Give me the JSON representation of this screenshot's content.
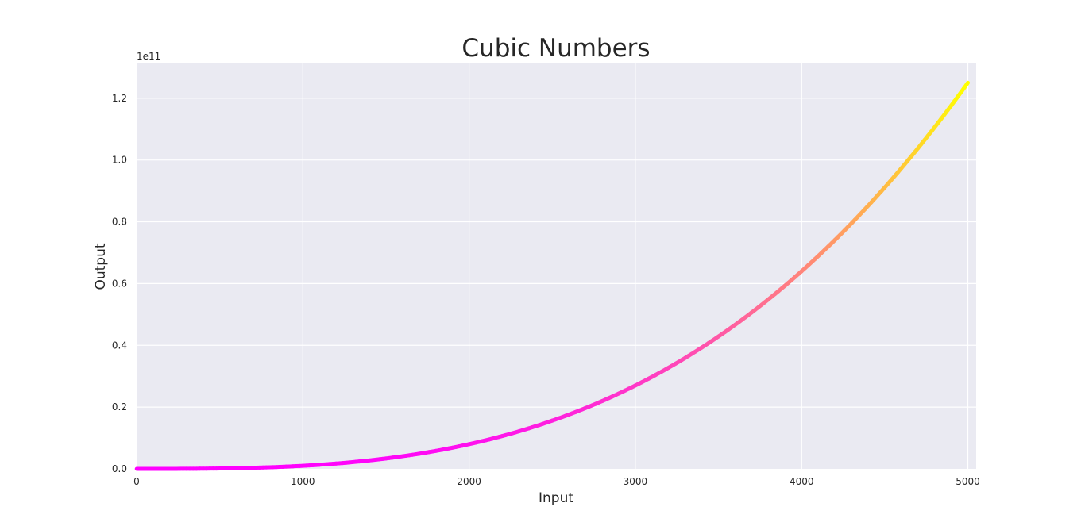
{
  "chart_data": {
    "type": "scatter",
    "title": "Cubic Numbers",
    "xlabel": "Input",
    "ylabel": "Output",
    "y_offset_label": "1e11",
    "xlim": [
      0,
      5050
    ],
    "ylim": [
      0,
      1.3125
    ],
    "x_ticks": [
      0,
      1000,
      2000,
      3000,
      4000,
      5000
    ],
    "x_tick_labels": [
      "0",
      "1000",
      "2000",
      "3000",
      "4000",
      "5000"
    ],
    "y_ticks": [
      0.0,
      0.2,
      0.4,
      0.6,
      0.8,
      1.0,
      1.2
    ],
    "y_tick_labels": [
      "0.0",
      "0.2",
      "0.4",
      "0.6",
      "0.8",
      "1.0",
      "1.2"
    ],
    "grid": true,
    "series": [
      {
        "function": "y = x^3",
        "x_start": 1,
        "x_end": 5000,
        "x_step": 1,
        "y_scale": 1e-11,
        "sample_points": [
          {
            "x": 1000,
            "y": 0.01
          },
          {
            "x": 2000,
            "y": 0.08
          },
          {
            "x": 3000,
            "y": 0.27
          },
          {
            "x": 4000,
            "y": 0.64
          },
          {
            "x": 5000,
            "y": 1.25
          }
        ],
        "colormap": "spring",
        "color_start": "#ff00ff",
        "color_end": "#ffff00"
      }
    ],
    "colors": {
      "plot_background": "#eaeaf2",
      "grid": "#ffffff",
      "text": "#262626"
    }
  }
}
